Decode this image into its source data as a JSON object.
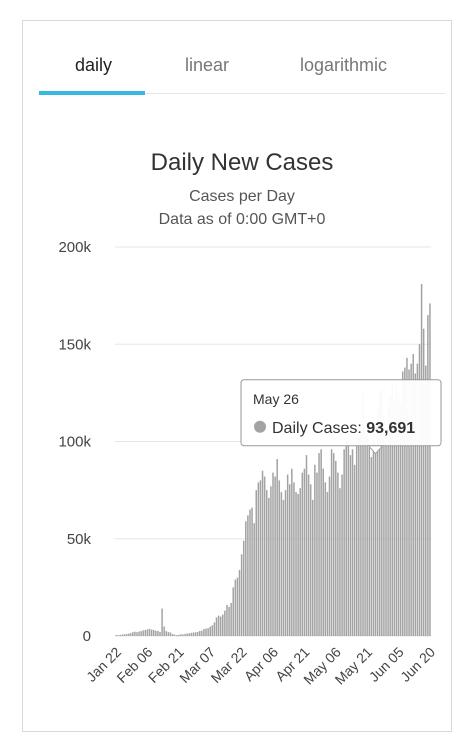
{
  "tabs": [
    {
      "label": "daily",
      "active": true
    },
    {
      "label": "linear",
      "active": false
    },
    {
      "label": "logarithmic",
      "active": false
    }
  ],
  "colors": {
    "bar": "#a3a3a3",
    "tab_accent": "#36b8e0",
    "grid": "#e6e6e6",
    "tooltip_border": "#999999"
  },
  "chart_data": {
    "type": "bar",
    "title": "Daily New Cases",
    "subtitle_lines": [
      "Cases per Day",
      "Data as of 0:00 GMT+0"
    ],
    "xlabel": "",
    "ylabel": "",
    "ylim": [
      0,
      200000
    ],
    "y_ticks": [
      0,
      50000,
      100000,
      150000,
      200000
    ],
    "y_tick_labels": [
      "0",
      "50k",
      "100k",
      "150k",
      "200k"
    ],
    "x_tick_labels": [
      "Jan 22",
      "Feb 06",
      "Feb 21",
      "Mar 07",
      "Mar 22",
      "Apr 06",
      "Apr 21",
      "May 06",
      "May 21",
      "Jun 05",
      "Jun 20"
    ],
    "grid": true,
    "series": [
      {
        "values": [
          500,
          500,
          600,
          800,
          900,
          1000,
          1200,
          1500,
          2000,
          2200,
          2000,
          2300,
          2500,
          2900,
          3100,
          3400,
          3700,
          3300,
          3100,
          2700,
          2600,
          2100,
          14100,
          4900,
          2500,
          2000,
          1800,
          1000,
          700,
          500,
          600,
          900,
          800,
          1100,
          1300,
          1400,
          1600,
          1800,
          1900,
          2100,
          2600,
          2700,
          3600,
          3800,
          4000,
          4800,
          5500,
          7000,
          9500,
          10500,
          10000,
          11000,
          13000,
          16000,
          15000,
          17000,
          25000,
          29000,
          30000,
          34000,
          42000,
          49000,
          59000,
          62000,
          65000,
          66000,
          58000,
          75000,
          79000,
          80000,
          85000,
          82000,
          75000,
          71000,
          77000,
          84000,
          82000,
          91000,
          80000,
          74000,
          70000,
          75000,
          83000,
          78000,
          86000,
          79000,
          74000,
          73000,
          76000,
          84000,
          86000,
          93000,
          83000,
          78000,
          70000,
          88000,
          84000,
          94000,
          96000,
          86000,
          79000,
          74000,
          82000,
          96000,
          94000,
          90000,
          84000,
          76000,
          83000,
          96000,
          100000,
          101000,
          93000,
          96000,
          88000,
          100000,
          102000,
          106000,
          125000,
          106000,
          107000,
          97000,
          92000,
          107000,
          93691,
          117000,
          125000,
          127000,
          114000,
          106000,
          118000,
          124000,
          131000,
          121000,
          130000,
          125000,
          120000,
          136000,
          138000,
          143000,
          137000,
          140000,
          145000,
          135000,
          140000,
          150000,
          181000,
          158000,
          139000,
          165000,
          171000
        ]
      }
    ],
    "tooltip": {
      "date": "May 26",
      "series_label": "Daily Cases: ",
      "value_text": "93,691"
    }
  }
}
